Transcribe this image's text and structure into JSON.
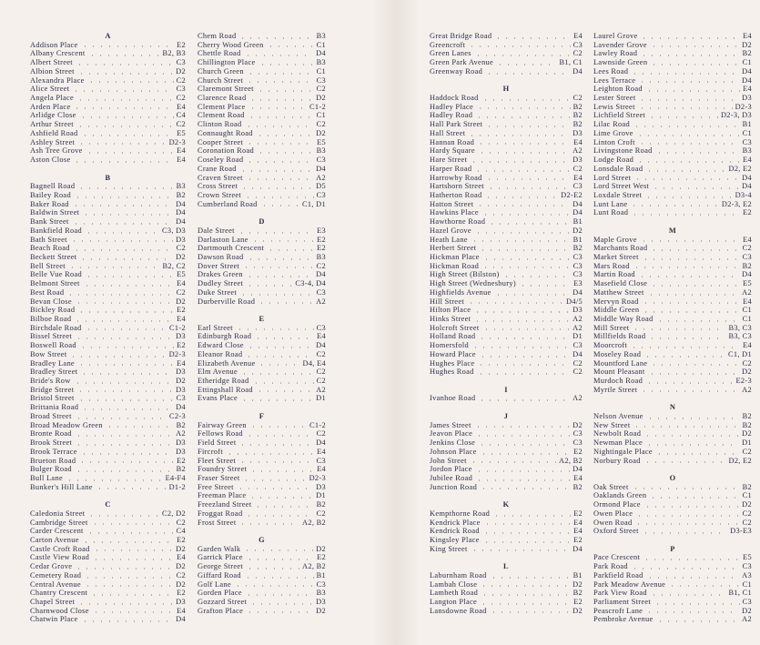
{
  "columns": [
    [
      {
        "letter": "A"
      },
      {
        "name": "Addison Place",
        "ref": "E2"
      },
      {
        "name": "Albany Crescent",
        "ref": "B2, B3"
      },
      {
        "name": "Albert Street",
        "ref": "C3"
      },
      {
        "name": "Albion Street",
        "ref": "D2"
      },
      {
        "name": "Alexandra Place",
        "ref": "C2"
      },
      {
        "name": "Alice Street",
        "ref": "C3"
      },
      {
        "name": "Angela Place",
        "ref": "C2"
      },
      {
        "name": "Arden Place",
        "ref": "E4"
      },
      {
        "name": "Arlidge Close",
        "ref": "C4"
      },
      {
        "name": "Arthur Street",
        "ref": "C2"
      },
      {
        "name": "Ashfield Road",
        "ref": "E5"
      },
      {
        "name": "Ashley Street",
        "ref": "D2-3"
      },
      {
        "name": "Ash Tree Grove",
        "ref": "E4"
      },
      {
        "name": "Aston Close",
        "ref": "E4"
      },
      {
        "letter": "B"
      },
      {
        "name": "Bagnell Road",
        "ref": "B3"
      },
      {
        "name": "Bailey Road",
        "ref": "B2"
      },
      {
        "name": "Baker Road",
        "ref": "D4"
      },
      {
        "name": "Baldwin Street",
        "ref": "D4"
      },
      {
        "name": "Bank Street",
        "ref": "D4"
      },
      {
        "name": "Bankfield Road",
        "ref": "C3, D3"
      },
      {
        "name": "Bath Street",
        "ref": "D3"
      },
      {
        "name": "Beach Road",
        "ref": "C2"
      },
      {
        "name": "Beckett Street",
        "ref": "D2"
      },
      {
        "name": "Bell Street",
        "ref": "B2, C2"
      },
      {
        "name": "Belle Vue Road",
        "ref": "E5"
      },
      {
        "name": "Belmont Street",
        "ref": "E4"
      },
      {
        "name": "Best Road",
        "ref": "C2"
      },
      {
        "name": "Bevan Close",
        "ref": "D2"
      },
      {
        "name": "Bickley Road",
        "ref": "E2"
      },
      {
        "name": "Bilboe Road",
        "ref": "E4"
      },
      {
        "name": "Birchdale Road",
        "ref": "C1-2"
      },
      {
        "name": "Bissel Street",
        "ref": "D3"
      },
      {
        "name": "Boswell Road",
        "ref": "E2"
      },
      {
        "name": "Bow Street",
        "ref": "D2-3"
      },
      {
        "name": "Bradley Lane",
        "ref": "E4"
      },
      {
        "name": "Bradley Street",
        "ref": "D3"
      },
      {
        "name": "Bride's Row",
        "ref": "D2"
      },
      {
        "name": "Bridge Street",
        "ref": "D3"
      },
      {
        "name": "Bristol Street",
        "ref": "C3"
      },
      {
        "name": "Brittania Road",
        "ref": "D4"
      },
      {
        "name": "Broad Street",
        "ref": "C2-3"
      },
      {
        "name": "Broad Meadow Green",
        "ref": "B2"
      },
      {
        "name": "Bronte Road",
        "ref": "A2"
      },
      {
        "name": "Brook Street",
        "ref": "D3"
      },
      {
        "name": "Brook Terrace",
        "ref": "D3"
      },
      {
        "name": "Brueton Road",
        "ref": "E2"
      },
      {
        "name": "Bulger Road",
        "ref": "B2"
      },
      {
        "name": "Bull Lane",
        "ref": "E4-F4"
      },
      {
        "name": "Bunker's Hill Lane",
        "ref": "D1-2"
      },
      {
        "letter": "C"
      },
      {
        "name": "Caledonia Street",
        "ref": "C2, D2"
      },
      {
        "name": "Cambridge Street",
        "ref": "C2"
      },
      {
        "name": "Carder Crescent",
        "ref": "C4"
      },
      {
        "name": "Carton Avenue",
        "ref": "E2"
      },
      {
        "name": "Castle Croft Road",
        "ref": "D2"
      },
      {
        "name": "Castle View Road",
        "ref": "E4"
      },
      {
        "name": "Cedar Grove",
        "ref": "D2"
      },
      {
        "name": "Cemetery Road",
        "ref": "C2"
      },
      {
        "name": "Central Avenue",
        "ref": "D2"
      },
      {
        "name": "Chantry Crescent",
        "ref": "E2"
      },
      {
        "name": "Chapel Street",
        "ref": "D3"
      },
      {
        "name": "Charnwood Close",
        "ref": "E4"
      },
      {
        "name": "Chatwin Place",
        "ref": "D4"
      }
    ],
    [
      {
        "name": "Chem Road",
        "ref": "B3"
      },
      {
        "name": "Cherry Wood Green",
        "ref": "C1"
      },
      {
        "name": "Chettle Road",
        "ref": "D4"
      },
      {
        "name": "Chillington Place",
        "ref": "B3"
      },
      {
        "name": "Church Green",
        "ref": "C1"
      },
      {
        "name": "Church Street",
        "ref": "C3"
      },
      {
        "name": "Claremont Street",
        "ref": "C2"
      },
      {
        "name": "Clarence Road",
        "ref": "D2"
      },
      {
        "name": "Clement Place",
        "ref": "C1-2"
      },
      {
        "name": "Clement Road",
        "ref": "C1"
      },
      {
        "name": "Clinton Road",
        "ref": "C2"
      },
      {
        "name": "Connaught Road",
        "ref": "D2"
      },
      {
        "name": "Cooper Street",
        "ref": "E5"
      },
      {
        "name": "Coronation Road",
        "ref": "B3"
      },
      {
        "name": "Coseley Road",
        "ref": "C3"
      },
      {
        "name": "Crane Road",
        "ref": "D4"
      },
      {
        "name": "Craven Street",
        "ref": "A2"
      },
      {
        "name": "Cross Street",
        "ref": "D5"
      },
      {
        "name": "Crown Street",
        "ref": "C3"
      },
      {
        "name": "Cumberland Road",
        "ref": "C1, D1"
      },
      {
        "letter": "D"
      },
      {
        "name": "Dale Street",
        "ref": "E3"
      },
      {
        "name": "Darlaston Lane",
        "ref": "E2"
      },
      {
        "name": "Dartmouth Crescent",
        "ref": "E2"
      },
      {
        "name": "Dawson Road",
        "ref": "B3"
      },
      {
        "name": "Dover Street",
        "ref": "C2"
      },
      {
        "name": "Drakes Green",
        "ref": "D4"
      },
      {
        "name": "Dudley Street",
        "ref": "C3-4, D4"
      },
      {
        "name": "Duke Street",
        "ref": "C3"
      },
      {
        "name": "Durberville Road",
        "ref": "A2"
      },
      {
        "letter": "E"
      },
      {
        "name": "Earl Street",
        "ref": "C3"
      },
      {
        "name": "Edinburgh Road",
        "ref": "E4"
      },
      {
        "name": "Edward Close",
        "ref": "D4"
      },
      {
        "name": "Eleanor Road",
        "ref": "C2"
      },
      {
        "name": "Elizabeth Avenue",
        "ref": "D4, E4"
      },
      {
        "name": "Elm Avenue",
        "ref": "C2"
      },
      {
        "name": "Etheridge Road",
        "ref": "C2"
      },
      {
        "name": "Ettingshall Road",
        "ref": "A2"
      },
      {
        "name": "Evans Place",
        "ref": "D1"
      },
      {
        "letter": "F"
      },
      {
        "name": "Fairway Green",
        "ref": "C1-2"
      },
      {
        "name": "Fellows Road",
        "ref": "C2"
      },
      {
        "name": "Field Street",
        "ref": "D4"
      },
      {
        "name": "Fircroft",
        "ref": "E4"
      },
      {
        "name": "Fleet Street",
        "ref": "C3"
      },
      {
        "name": "Foundry Street",
        "ref": "E4"
      },
      {
        "name": "Fraser Street",
        "ref": "D2-3"
      },
      {
        "name": "Free Street",
        "ref": "D3"
      },
      {
        "name": "Freeman Place",
        "ref": "D1"
      },
      {
        "name": "Freezland Street",
        "ref": "B2"
      },
      {
        "name": "Froggat Road",
        "ref": "C2"
      },
      {
        "name": "Frost Street",
        "ref": "A2, B2"
      },
      {
        "letter": "G"
      },
      {
        "name": "Garden Walk",
        "ref": "D2"
      },
      {
        "name": "Garrick Place",
        "ref": "E2"
      },
      {
        "name": "George Street",
        "ref": "A2, B2"
      },
      {
        "name": "Giffard Road",
        "ref": "B1"
      },
      {
        "name": "Golf Lane",
        "ref": "C3"
      },
      {
        "name": "Gorden Place",
        "ref": "B3"
      },
      {
        "name": "Gozzard Street",
        "ref": "D3"
      },
      {
        "name": "Grafton Place",
        "ref": "D2"
      }
    ],
    [
      {
        "name": "Great Bridge Road",
        "ref": "E4"
      },
      {
        "name": "Greencroft",
        "ref": "C3"
      },
      {
        "name": "Green Lanes",
        "ref": "C2"
      },
      {
        "name": "Green Park Avenue",
        "ref": "B1, C1"
      },
      {
        "name": "Greenway Road",
        "ref": "D4"
      },
      {
        "letter": "H"
      },
      {
        "name": "Haddock Road",
        "ref": "C2"
      },
      {
        "name": "Hadley Place",
        "ref": "B2"
      },
      {
        "name": "Hadley Road",
        "ref": "B2"
      },
      {
        "name": "Hall Park Street",
        "ref": "B2"
      },
      {
        "name": "Hall Street",
        "ref": "D3"
      },
      {
        "name": "Hannan Road",
        "ref": "E4"
      },
      {
        "name": "Hardy Square",
        "ref": "A2"
      },
      {
        "name": "Hare Street",
        "ref": "D3"
      },
      {
        "name": "Harper Road",
        "ref": "C2"
      },
      {
        "name": "Harrowby Road",
        "ref": "E4"
      },
      {
        "name": "Hartshorn Street",
        "ref": "C3"
      },
      {
        "name": "Hatherton Road",
        "ref": "D2-E2"
      },
      {
        "name": "Hatton Street",
        "ref": "D4"
      },
      {
        "name": "Hawkins Place",
        "ref": "D4"
      },
      {
        "name": "Hawthorne Road",
        "ref": "B1"
      },
      {
        "name": "Hazel Grove",
        "ref": "D2"
      },
      {
        "name": "Heath Lane",
        "ref": "B1"
      },
      {
        "name": "Herbert Street",
        "ref": "B2"
      },
      {
        "name": "Hickman Place",
        "ref": "C3"
      },
      {
        "name": "Hickman Road",
        "ref": "C3"
      },
      {
        "name": "High Street (Bilston)",
        "ref": "C3"
      },
      {
        "name": "High Street (Wednesbury)",
        "ref": "E3"
      },
      {
        "name": "Highfields Avenue",
        "ref": "D4"
      },
      {
        "name": "Hill Street",
        "ref": "D4/5"
      },
      {
        "name": "Hilton Place",
        "ref": "D3"
      },
      {
        "name": "Hinks Street",
        "ref": "A2"
      },
      {
        "name": "Holcroft Street",
        "ref": "A2"
      },
      {
        "name": "Holland Road",
        "ref": "D1"
      },
      {
        "name": "Homersfold",
        "ref": "C3"
      },
      {
        "name": "Howard Place",
        "ref": "D4"
      },
      {
        "name": "Hughes Place",
        "ref": "C2"
      },
      {
        "name": "Hughes Road",
        "ref": "C2"
      },
      {
        "letter": "I"
      },
      {
        "name": "Ivanhoe Road",
        "ref": "A2"
      },
      {
        "letter": "J"
      },
      {
        "name": "James Street",
        "ref": "D2"
      },
      {
        "name": "Jeavon Place",
        "ref": "C3"
      },
      {
        "name": "Jenkins Close",
        "ref": "C3"
      },
      {
        "name": "Johnson Place",
        "ref": "E2"
      },
      {
        "name": "John Street",
        "ref": "A2, B2"
      },
      {
        "name": "Jordon Place",
        "ref": "D4"
      },
      {
        "name": "Jubilee Road",
        "ref": "E4"
      },
      {
        "name": "Junction Road",
        "ref": "B2"
      },
      {
        "letter": "K"
      },
      {
        "name": "Kempthorne Road",
        "ref": "E2"
      },
      {
        "name": "Kendrick Place",
        "ref": "E4"
      },
      {
        "name": "Kendrick Road",
        "ref": "E4"
      },
      {
        "name": "Kingsley Place",
        "ref": "E2"
      },
      {
        "name": "King Street",
        "ref": "D4"
      },
      {
        "letter": "L"
      },
      {
        "name": "Laburnham Road",
        "ref": "B1"
      },
      {
        "name": "Lambah Close",
        "ref": "D2"
      },
      {
        "name": "Lambeth Road",
        "ref": "B2"
      },
      {
        "name": "Langton Place",
        "ref": "E2"
      },
      {
        "name": "Lansdowne Road",
        "ref": "D2"
      }
    ],
    [
      {
        "name": "Laurel Grove",
        "ref": "E4"
      },
      {
        "name": "Lavender Grove",
        "ref": "D2"
      },
      {
        "name": "Lawley Road",
        "ref": "B2"
      },
      {
        "name": "Lawnside Green",
        "ref": "C1"
      },
      {
        "name": "Lees Road",
        "ref": "D4"
      },
      {
        "name": "Lees Terrace",
        "ref": "D4"
      },
      {
        "name": "Leighton Road",
        "ref": "E4"
      },
      {
        "name": "Lester Street",
        "ref": "D3"
      },
      {
        "name": "Lewis Street",
        "ref": "D2-3"
      },
      {
        "name": "Lichfield Street",
        "ref": "D2-3, D3"
      },
      {
        "name": "Lilac Road",
        "ref": "B1"
      },
      {
        "name": "Lime Grove",
        "ref": "C1"
      },
      {
        "name": "Linton Croft",
        "ref": "C3"
      },
      {
        "name": "Livingstone Road",
        "ref": "B3"
      },
      {
        "name": "Lodge Road",
        "ref": "E4"
      },
      {
        "name": "Lonsdale Road",
        "ref": "D2, E2"
      },
      {
        "name": "Lord Street",
        "ref": "D4"
      },
      {
        "name": "Lord Street West",
        "ref": "D4"
      },
      {
        "name": "Loxdale Street",
        "ref": "D3-4"
      },
      {
        "name": "Lunt Lane",
        "ref": "D2-3, E2"
      },
      {
        "name": "Lunt Road",
        "ref": "E2"
      },
      {
        "letter": "M"
      },
      {
        "name": "Maple Grove",
        "ref": "E4"
      },
      {
        "name": "Marchants Road",
        "ref": "C2"
      },
      {
        "name": "Market Street",
        "ref": "C3"
      },
      {
        "name": "Mars Road",
        "ref": "B2"
      },
      {
        "name": "Martin Road",
        "ref": "D4"
      },
      {
        "name": "Masefield Close",
        "ref": "E5"
      },
      {
        "name": "Matthew Street",
        "ref": "A2"
      },
      {
        "name": "Mervyn Road",
        "ref": "E4"
      },
      {
        "name": "Middle Green",
        "ref": "C1"
      },
      {
        "name": "Middle Way Road",
        "ref": "C1"
      },
      {
        "name": "Mill Street",
        "ref": "B3, C3"
      },
      {
        "name": "Millfields Road",
        "ref": "B3, C3"
      },
      {
        "name": "Moorcroft",
        "ref": "E4"
      },
      {
        "name": "Moseley Road",
        "ref": "C1, D1"
      },
      {
        "name": "Mountford Lane",
        "ref": "C2"
      },
      {
        "name": "Mount Pleasant",
        "ref": "D2"
      },
      {
        "name": "Murdoch Road",
        "ref": "E2-3"
      },
      {
        "name": "Myrtle Street",
        "ref": "A2"
      },
      {
        "letter": "N"
      },
      {
        "name": "Nelson Avenue",
        "ref": "B2"
      },
      {
        "name": "New Street",
        "ref": "B2"
      },
      {
        "name": "Newbolt Road",
        "ref": "D2"
      },
      {
        "name": "Newman Place",
        "ref": "D1"
      },
      {
        "name": "Nightingale Place",
        "ref": "C2"
      },
      {
        "name": "Norbury Road",
        "ref": "D2, E2"
      },
      {
        "letter": "O"
      },
      {
        "name": "Oak Street",
        "ref": "B2"
      },
      {
        "name": "Oaklands Green",
        "ref": "C1"
      },
      {
        "name": "Ormond Place",
        "ref": "D2"
      },
      {
        "name": "Owen Place",
        "ref": "C2"
      },
      {
        "name": "Owen Road",
        "ref": "C2"
      },
      {
        "name": "Oxford Street",
        "ref": "D3-E3"
      },
      {
        "letter": "P"
      },
      {
        "name": "Pace Crescent",
        "ref": "E5"
      },
      {
        "name": "Park Road",
        "ref": "C3"
      },
      {
        "name": "Parkfield Road",
        "ref": "A3"
      },
      {
        "name": "Park Meadow Avenue",
        "ref": "C1"
      },
      {
        "name": "Park View Road",
        "ref": "B1, C1"
      },
      {
        "name": "Parliament Street",
        "ref": "C3"
      },
      {
        "name": "Peascroft Lane",
        "ref": "D2"
      },
      {
        "name": "Pembroke Avenue",
        "ref": "A2"
      }
    ]
  ]
}
